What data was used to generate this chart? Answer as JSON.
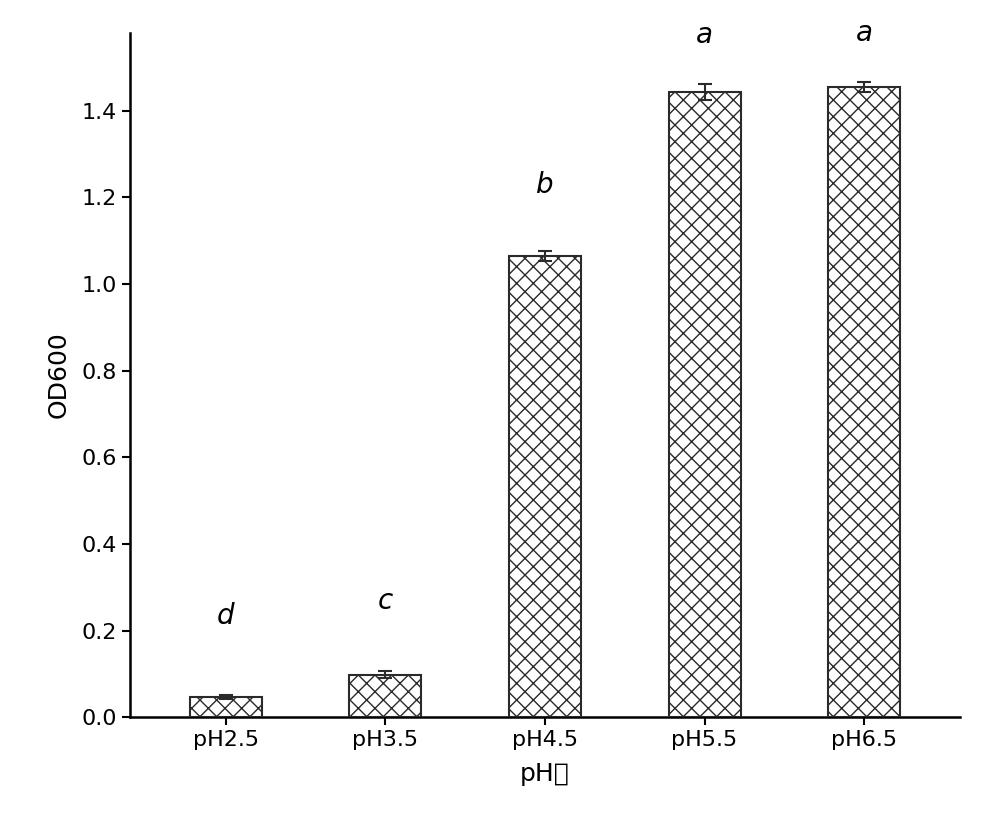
{
  "categories": [
    "pH2.5",
    "pH3.5",
    "pH4.5",
    "pH5.5",
    "pH6.5"
  ],
  "values": [
    0.047,
    0.098,
    1.065,
    1.443,
    1.455
  ],
  "errors": [
    0.005,
    0.008,
    0.012,
    0.018,
    0.012
  ],
  "significance": [
    "d",
    "c",
    "b",
    "a",
    "a"
  ],
  "sig_offsets": [
    0.15,
    0.13,
    0.12,
    0.08,
    0.08
  ],
  "xlabel": "pH値",
  "ylabel": "OD600",
  "ylim": [
    0,
    1.58
  ],
  "yticks": [
    0.0,
    0.2,
    0.4,
    0.6,
    0.8,
    1.0,
    1.2,
    1.4
  ],
  "bar_color": "#ffffff",
  "bar_edge_color": "#2a2a2a",
  "hatch_pattern": "xx",
  "background_color": "#ffffff",
  "fig_width": 10.0,
  "fig_height": 8.15,
  "bar_width": 0.45,
  "ecolor": "#2a2a2a",
  "spine_linewidth": 1.8,
  "tick_fontsize": 16,
  "label_fontsize": 18,
  "sig_fontsize": 20
}
